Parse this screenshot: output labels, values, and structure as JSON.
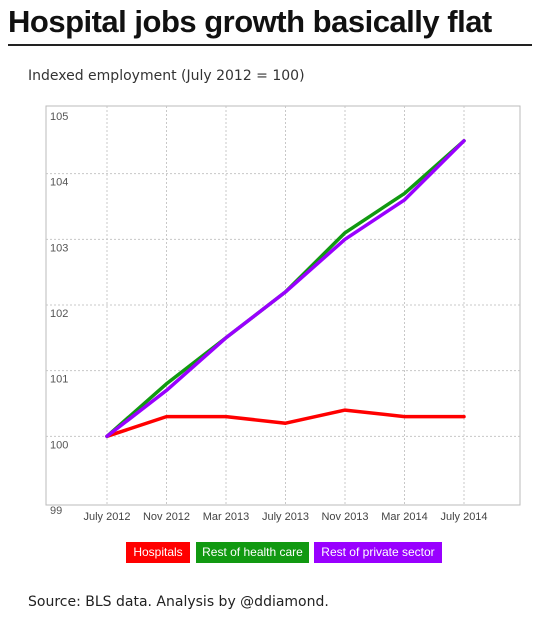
{
  "header": {
    "title": "Hospital jobs growth basically flat"
  },
  "footer": {
    "source": "Source: BLS data. Analysis by @ddiamond."
  },
  "chart_data": {
    "type": "line",
    "title": "",
    "ylabel": "Indexed employment (July 2012 = 100)",
    "xlabel": "",
    "categories": [
      "July 2012",
      "Nov 2012",
      "Mar 2013",
      "July 2013",
      "Nov 2013",
      "Mar 2014",
      "July 2014"
    ],
    "ylim": [
      99,
      105
    ],
    "yticks": [
      99,
      100,
      101,
      102,
      103,
      104,
      105
    ],
    "grid": true,
    "legend_position": "bottom",
    "series": [
      {
        "name": "Hospitals",
        "color": "#ff0000",
        "values": [
          100.0,
          100.3,
          100.3,
          100.2,
          100.4,
          100.3,
          100.3
        ]
      },
      {
        "name": "Rest of health care",
        "color": "#119911",
        "values": [
          100.0,
          100.8,
          101.5,
          102.2,
          103.1,
          103.7,
          104.5
        ]
      },
      {
        "name": "Rest of private sector",
        "color": "#9900ff",
        "values": [
          100.0,
          100.7,
          101.5,
          102.2,
          103.0,
          103.6,
          104.5
        ]
      }
    ]
  }
}
